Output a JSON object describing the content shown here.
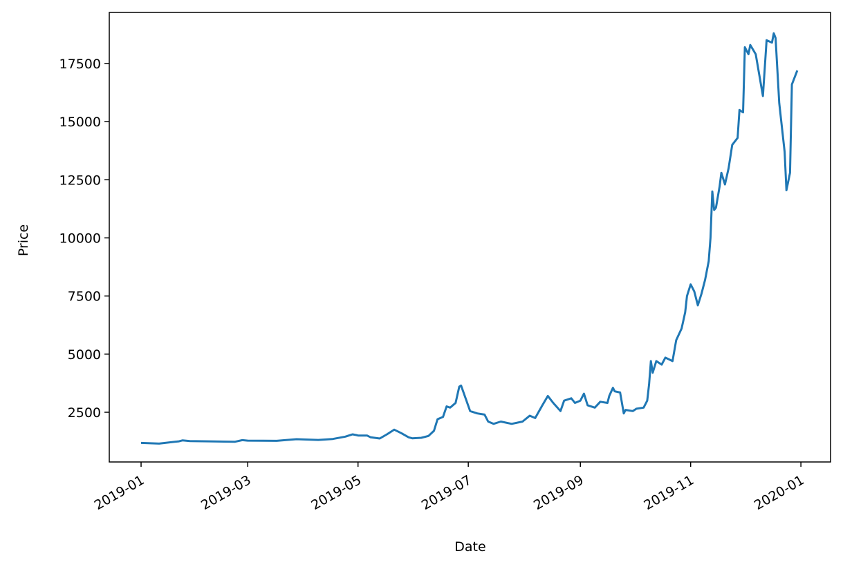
{
  "chart_data": {
    "type": "line",
    "x_label": "Date",
    "y_label": "Price",
    "color": "#1f77b4",
    "x": [
      0,
      10,
      21,
      23,
      27,
      37,
      52,
      56,
      59,
      75,
      86,
      98,
      106,
      113,
      117,
      119,
      120,
      125,
      127,
      132,
      136,
      140,
      144,
      148,
      150,
      155,
      159,
      162,
      164,
      167,
      169,
      171,
      174,
      176,
      177,
      180,
      182,
      186,
      190,
      192,
      195,
      199,
      205,
      211,
      215,
      218,
      222,
      225,
      228,
      232,
      234,
      238,
      240,
      243,
      245,
      247,
      251,
      254,
      258,
      259,
      261,
      262,
      265,
      267,
      268,
      272,
      274,
      278,
      280,
      281,
      282,
      283,
      285,
      288,
      290,
      294,
      296,
      299,
      301,
      302,
      304,
      306,
      308,
      310,
      312,
      314,
      315,
      316,
      317,
      318,
      320,
      321,
      323,
      325,
      327,
      330,
      331,
      333,
      334,
      336,
      337,
      340,
      342,
      344,
      346,
      349,
      350,
      351,
      353,
      356,
      357,
      359,
      360,
      363
    ],
    "values": [
      1180,
      1150,
      1250,
      1290,
      1260,
      1250,
      1230,
      1300,
      1280,
      1270,
      1340,
      1310,
      1350,
      1450,
      1550,
      1520,
      1500,
      1500,
      1420,
      1370,
      1550,
      1750,
      1600,
      1420,
      1380,
      1400,
      1480,
      1700,
      2200,
      2300,
      2750,
      2700,
      2900,
      3600,
      3650,
      3000,
      2550,
      2450,
      2400,
      2100,
      2000,
      2100,
      2000,
      2100,
      2350,
      2250,
      2800,
      3200,
      2900,
      2550,
      3000,
      3100,
      2900,
      3000,
      3300,
      2800,
      2700,
      2950,
      2900,
      3200,
      3550,
      3400,
      3350,
      2450,
      2600,
      2550,
      2650,
      2700,
      3000,
      3700,
      4700,
      4200,
      4700,
      4550,
      4850,
      4700,
      5600,
      6100,
      6800,
      7500,
      8000,
      7700,
      7100,
      7600,
      8200,
      9000,
      10000,
      12000,
      11200,
      11300,
      12200,
      12800,
      12300,
      13000,
      14000,
      14300,
      15500,
      15400,
      18200,
      17900,
      18300,
      17900,
      17000,
      16100,
      18500,
      18400,
      18800,
      18600,
      15800,
      13700,
      12050,
      12800,
      16600,
      17200
    ],
    "xlim": [
      -17.6,
      381.4
    ],
    "xticks": [
      {
        "value": 0,
        "label": "2019-01"
      },
      {
        "value": 59,
        "label": "2019-03"
      },
      {
        "value": 120,
        "label": "2019-05"
      },
      {
        "value": 181,
        "label": "2019-07"
      },
      {
        "value": 243,
        "label": "2019-09"
      },
      {
        "value": 304,
        "label": "2019-11"
      },
      {
        "value": 365,
        "label": "2020-01"
      }
    ],
    "ylim": [
      361,
      19698
    ],
    "yticks": [
      2500,
      5000,
      7500,
      10000,
      12500,
      15000,
      17500
    ]
  }
}
